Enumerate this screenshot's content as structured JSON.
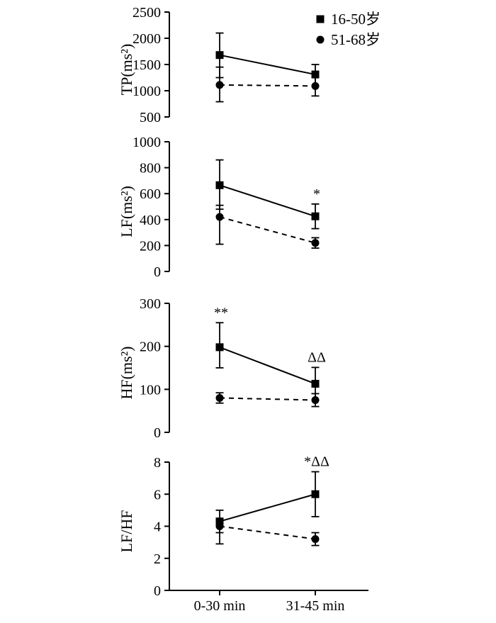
{
  "chart_data": {
    "type": "line",
    "title": "",
    "categories": [
      "0-30 min",
      "31-45 min"
    ],
    "color": "#000000",
    "grid": false,
    "legend": {
      "position": "top-right",
      "entries": [
        {
          "label": "16-50岁",
          "marker": "square",
          "line_style": "solid"
        },
        {
          "label": "51-68岁",
          "marker": "circle",
          "line_style": "dashed"
        }
      ]
    },
    "panels": [
      {
        "ylabel": "TP(ms²)",
        "ylim": [
          500,
          2500
        ],
        "yticks": [
          500,
          1000,
          1500,
          2000,
          2500
        ],
        "series": [
          {
            "name": "16-50岁",
            "values": [
              1680,
              1310
            ],
            "err_low": [
              430,
              210
            ],
            "err_high": [
              420,
              190
            ]
          },
          {
            "name": "51-68岁",
            "values": [
              1110,
              1090
            ],
            "err_low": [
              320,
              190
            ],
            "err_high": [
              340,
              210
            ]
          }
        ],
        "annotations": []
      },
      {
        "ylabel": "LF(ms²)",
        "ylim": [
          0,
          1000
        ],
        "yticks": [
          0,
          200,
          400,
          600,
          800,
          1000
        ],
        "series": [
          {
            "name": "16-50岁",
            "values": [
              665,
              425
            ],
            "err_low": [
              185,
              95
            ],
            "err_high": [
              195,
              95
            ]
          },
          {
            "name": "51-68岁",
            "values": [
              420,
              220
            ],
            "err_low": [
              210,
              40
            ],
            "err_high": [
              90,
              40
            ]
          }
        ],
        "annotations": [
          {
            "text": "*",
            "x_index": 1,
            "series_index": 0
          }
        ]
      },
      {
        "ylabel": "HF(ms²)",
        "ylim": [
          0,
          300
        ],
        "yticks": [
          0,
          100,
          200,
          300
        ],
        "series": [
          {
            "name": "16-50岁",
            "values": [
              198,
              113
            ],
            "err_low": [
              48,
              38
            ],
            "err_high": [
              57,
              38
            ]
          },
          {
            "name": "51-68岁",
            "values": [
              80,
              75
            ],
            "err_low": [
              12,
              15
            ],
            "err_high": [
              12,
              15
            ]
          }
        ],
        "annotations": [
          {
            "text": "**",
            "x_index": 0,
            "series_index": 0
          },
          {
            "text": "ΔΔ",
            "x_index": 1,
            "series_index": 0
          }
        ]
      },
      {
        "ylabel": "LF/HF",
        "ylim": [
          0,
          8
        ],
        "yticks": [
          0,
          2,
          4,
          6,
          8
        ],
        "series": [
          {
            "name": "16-50岁",
            "values": [
              4.3,
              6.0
            ],
            "err_low": [
              1.4,
              1.4
            ],
            "err_high": [
              0.7,
              1.4
            ]
          },
          {
            "name": "51-68岁",
            "values": [
              4.0,
              3.2
            ],
            "err_low": [
              0.4,
              0.4
            ],
            "err_high": [
              0.4,
              0.4
            ]
          }
        ],
        "annotations": [
          {
            "text": "*ΔΔ",
            "x_index": 1,
            "series_index": 0
          }
        ]
      }
    ]
  }
}
